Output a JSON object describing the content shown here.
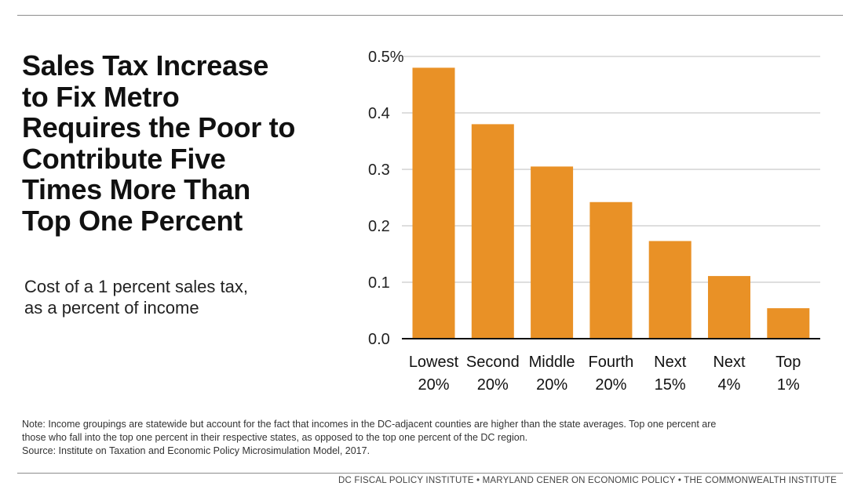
{
  "headline": {
    "lines": [
      "Sales Tax Increase",
      "to Fix Metro",
      "Requires the Poor to",
      "Contribute Five",
      "Times More Than",
      "Top One Percent"
    ]
  },
  "subtitle": {
    "lines": [
      "Cost of a 1 percent sales tax,",
      "as a percent of income"
    ]
  },
  "note": {
    "lines": [
      "Note: Income groupings are statewide but account for the fact that incomes in the DC-adjacent counties are higher than the state averages. Top one percent are",
      "those who fall into the top one percent in their respective states, as opposed to the top one percent of the DC region.",
      "Source: Institute on Taxation and Economic Policy Microsimulation Model, 2017."
    ]
  },
  "footer": "DC FISCAL POLICY INSTITUTE • MARYLAND CENER ON ECONOMIC POLICY • THE COMMONWEALTH INSTITUTE",
  "colors": {
    "bar": "#E99126",
    "grid": "#bdbdbd",
    "axis": "#111111"
  },
  "chart_data": {
    "type": "bar",
    "categories": [
      [
        "Lowest",
        "20%"
      ],
      [
        "Second",
        "20%"
      ],
      [
        "Middle",
        "20%"
      ],
      [
        "Fourth",
        "20%"
      ],
      [
        "Next",
        "15%"
      ],
      [
        "Next",
        "4%"
      ],
      [
        "Top",
        "1%"
      ]
    ],
    "values": [
      0.48,
      0.38,
      0.305,
      0.242,
      0.173,
      0.111,
      0.054
    ],
    "yticks": [
      0.0,
      0.1,
      0.2,
      0.3,
      0.4,
      0.5
    ],
    "ytick_labels": [
      "0.0",
      "0.1",
      "0.2",
      "0.3",
      "0.4",
      "0.5%"
    ],
    "ylim": [
      0,
      0.5
    ],
    "grid": true
  }
}
